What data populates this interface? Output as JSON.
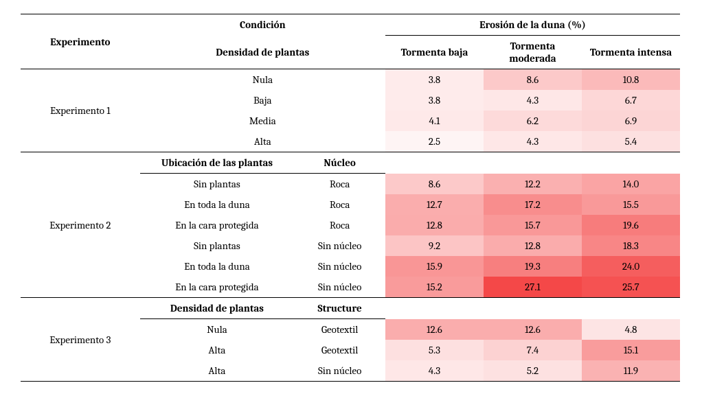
{
  "header": {
    "experiment": "Experimento",
    "condition": "Condición",
    "erosion": "Erosión de la duna (%)",
    "storm_low": "Tormenta baja",
    "storm_mod": "Tormenta moderada",
    "storm_high": "Tormenta intensa"
  },
  "heatmap": {
    "min": 2.5,
    "max": 27.1,
    "base_color": "#ffffff",
    "accent_color": "#f44848"
  },
  "exp1": {
    "name": "Experimento 1",
    "subhead": {
      "c1": "Densidad de plantas",
      "c2": ""
    },
    "rows": [
      {
        "c1": "Nula",
        "c2": "",
        "v": [
          3.8,
          8.6,
          10.8
        ]
      },
      {
        "c1": "Baja",
        "c2": "",
        "v": [
          3.8,
          4.3,
          6.7
        ]
      },
      {
        "c1": "Media",
        "c2": "",
        "v": [
          4.1,
          6.2,
          6.9
        ]
      },
      {
        "c1": "Alta",
        "c2": "",
        "v": [
          2.5,
          4.3,
          5.4
        ]
      }
    ]
  },
  "exp2": {
    "name": "Experimento 2",
    "subhead": {
      "c1": "Ubicación de las plantas",
      "c2": "Núcleo"
    },
    "rows": [
      {
        "c1": "Sin plantas",
        "c2": "Roca",
        "v": [
          8.6,
          12.2,
          14.0
        ]
      },
      {
        "c1": "En toda la duna",
        "c2": "Roca",
        "v": [
          12.7,
          17.2,
          15.5
        ]
      },
      {
        "c1": "En la cara protegida",
        "c2": "Roca",
        "v": [
          12.8,
          15.7,
          19.6
        ]
      },
      {
        "c1": "Sin plantas",
        "c2": "Sin núcleo",
        "v": [
          9.2,
          12.8,
          18.3
        ]
      },
      {
        "c1": "En toda la duna",
        "c2": "Sin núcleo",
        "v": [
          15.9,
          19.3,
          24.0
        ]
      },
      {
        "c1": "En la cara protegida",
        "c2": "Sin núcleo",
        "v": [
          15.2,
          27.1,
          25.7
        ]
      }
    ]
  },
  "exp3": {
    "name": "Experimento 3",
    "subhead": {
      "c1": "Densidad de plantas",
      "c2": "Structure"
    },
    "rows": [
      {
        "c1": "Nula",
        "c2": "Geotextil",
        "v": [
          12.6,
          12.6,
          4.8
        ]
      },
      {
        "c1": "Alta",
        "c2": "Geotextil",
        "v": [
          5.3,
          7.4,
          15.1
        ]
      },
      {
        "c1": "Alta",
        "c2": "Sin núcleo",
        "v": [
          4.3,
          5.2,
          11.9
        ]
      }
    ]
  }
}
